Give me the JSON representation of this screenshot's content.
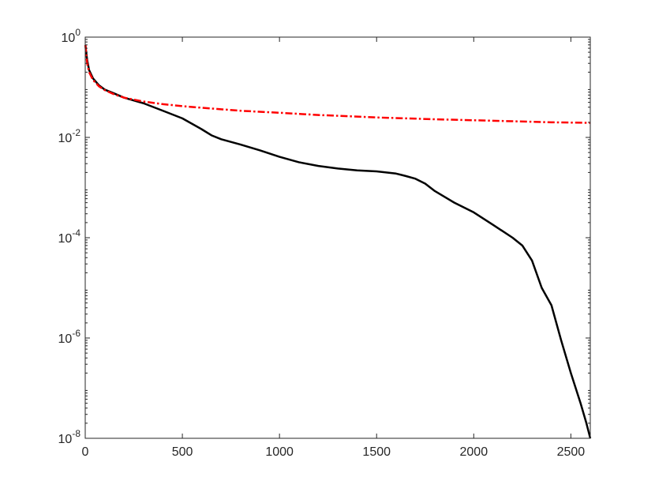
{
  "chart_data": {
    "type": "line",
    "title": "",
    "xlabel": "",
    "ylabel": "",
    "xlim": [
      0,
      2600
    ],
    "ylim": [
      1e-08,
      1
    ],
    "yscale": "log",
    "grid": false,
    "box": true,
    "x_ticks": [
      {
        "value": 0,
        "label": "0"
      },
      {
        "value": 500,
        "label": "500"
      },
      {
        "value": 1000,
        "label": "1000"
      },
      {
        "value": 1500,
        "label": "1500"
      },
      {
        "value": 2000,
        "label": "2000"
      },
      {
        "value": 2500,
        "label": "2500"
      }
    ],
    "y_ticks": [
      {
        "value": 1e-08,
        "base": "10",
        "exp": "-8"
      },
      {
        "value": 1e-06,
        "base": "10",
        "exp": "-6"
      },
      {
        "value": 0.0001,
        "base": "10",
        "exp": "-4"
      },
      {
        "value": 0.01,
        "base": "10",
        "exp": "-2"
      },
      {
        "value": 1,
        "base": "10",
        "exp": "0"
      }
    ],
    "series": [
      {
        "color": "#000000",
        "style": "solid",
        "x": [
          1,
          5,
          10,
          20,
          40,
          70,
          100,
          150,
          200,
          300,
          400,
          500,
          600,
          650,
          700,
          800,
          900,
          1000,
          1100,
          1200,
          1300,
          1400,
          1500,
          1600,
          1650,
          1700,
          1750,
          1800,
          1900,
          2000,
          2100,
          2200,
          2250,
          2300,
          2350,
          2400,
          2450,
          2500,
          2550,
          2580,
          2600
        ],
        "y": [
          0.7,
          0.5,
          0.35,
          0.22,
          0.15,
          0.11,
          0.09,
          0.075,
          0.062,
          0.048,
          0.034,
          0.024,
          0.0145,
          0.011,
          0.0092,
          0.0072,
          0.0055,
          0.0041,
          0.0032,
          0.0027,
          0.0024,
          0.0022,
          0.0021,
          0.0019,
          0.0017,
          0.0015,
          0.0012,
          0.00085,
          0.0005,
          0.00032,
          0.00018,
          0.0001,
          7e-05,
          3.5e-05,
          1e-05,
          4.5e-06,
          9e-07,
          2e-07,
          5e-08,
          2e-08,
          1e-08
        ]
      },
      {
        "color": "#ff0000",
        "style": "dashdot",
        "x": [
          1,
          5,
          10,
          20,
          40,
          70,
          100,
          150,
          200,
          300,
          400,
          500,
          600,
          800,
          1000,
          1200,
          1500,
          1800,
          2000,
          2200,
          2400,
          2600
        ],
        "y": [
          0.7,
          0.45,
          0.3,
          0.2,
          0.14,
          0.105,
          0.088,
          0.072,
          0.062,
          0.052,
          0.046,
          0.042,
          0.039,
          0.034,
          0.031,
          0.028,
          0.025,
          0.023,
          0.022,
          0.021,
          0.02,
          0.0195
        ]
      }
    ]
  }
}
